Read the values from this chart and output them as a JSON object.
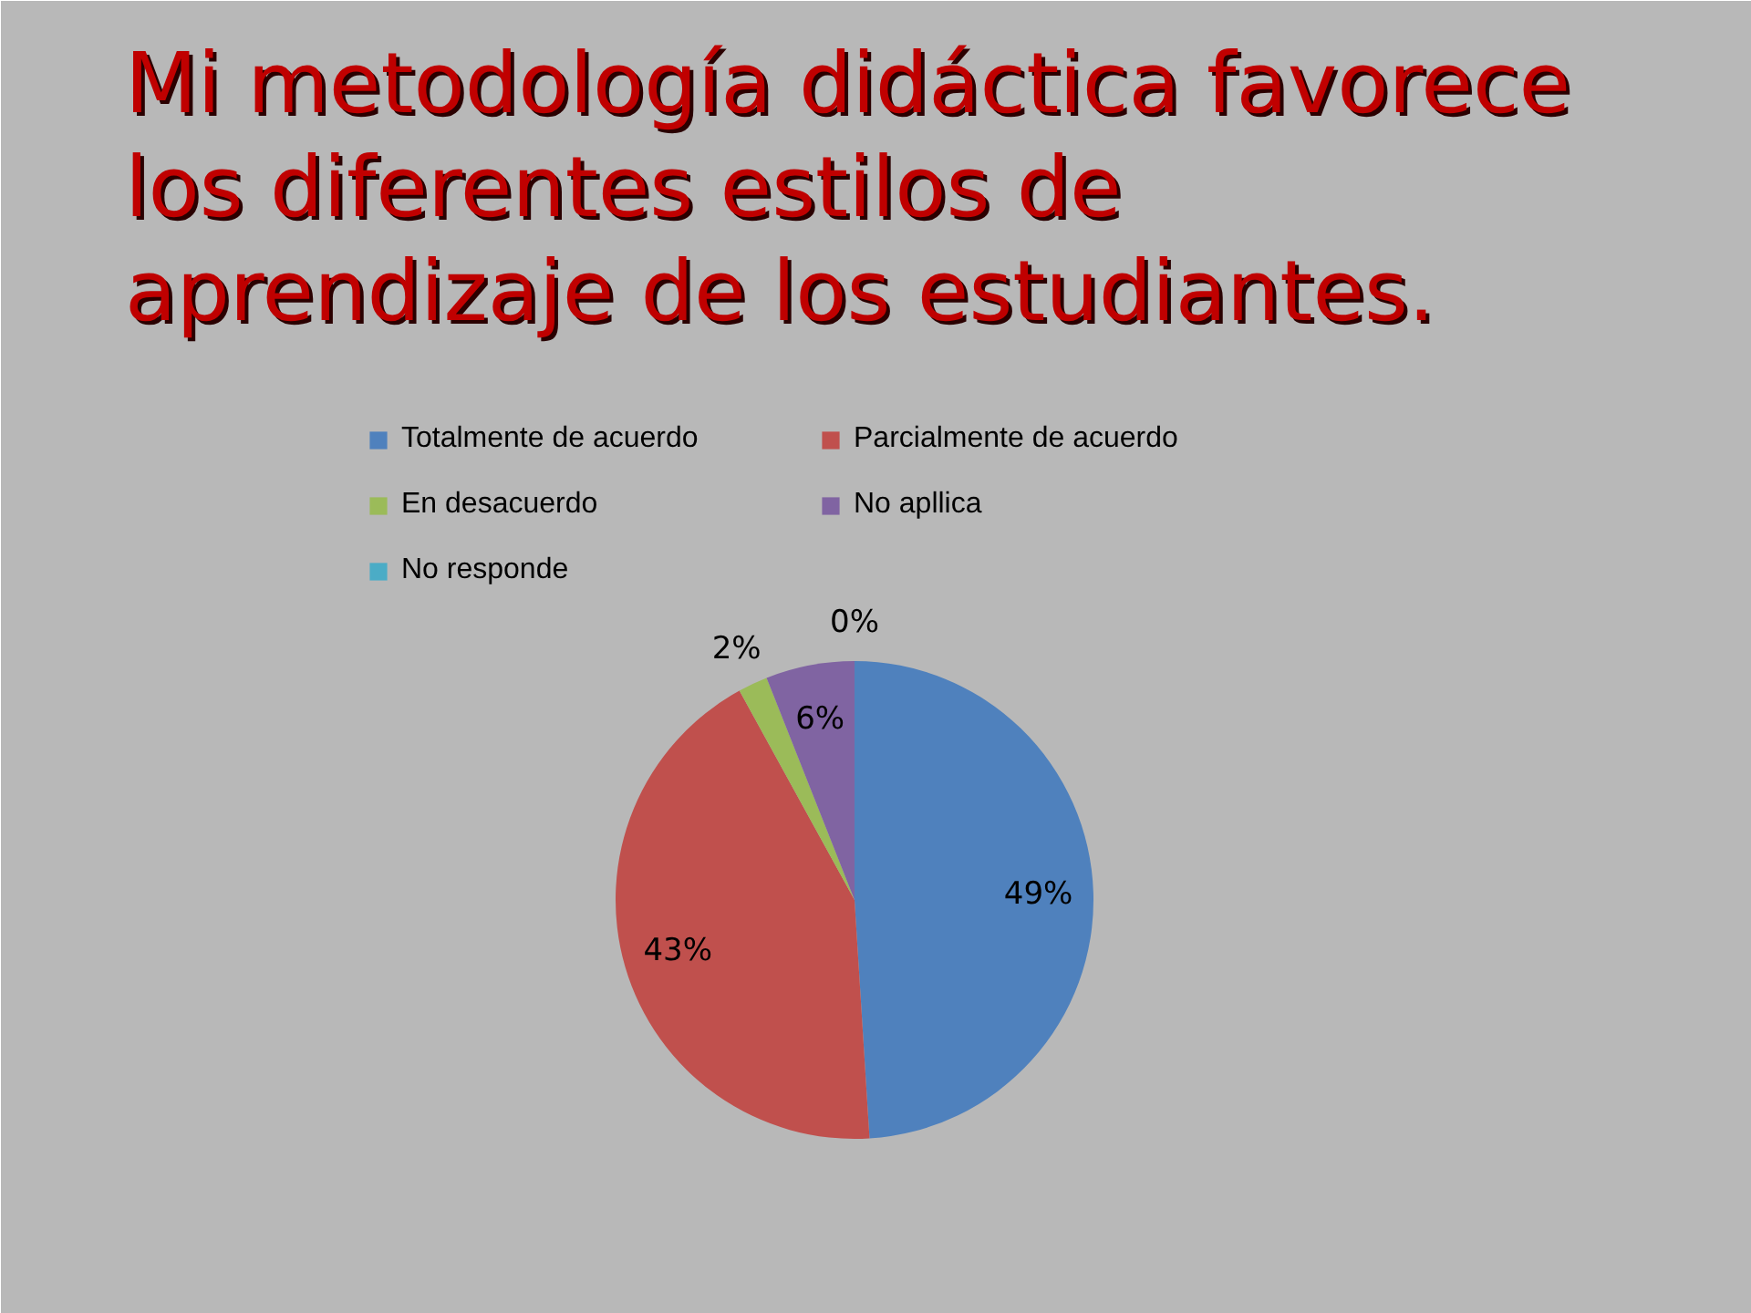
{
  "chart_data": {
    "type": "pie",
    "title": "Mi metodología didáctica favorece los diferentes estilos de aprendizaje de los estudiantes.",
    "categories": [
      "Totalmente de acuerdo",
      "Parcialmente de acuerdo",
      "En desacuerdo",
      "No apllica",
      "No responde"
    ],
    "values": [
      49,
      43,
      2,
      6,
      0
    ],
    "colors": [
      "#4f81bd",
      "#c0504d",
      "#9bbb59",
      "#8064a2",
      "#4bacc6"
    ],
    "value_labels": [
      "49%",
      "43%",
      "2%",
      "6%",
      "0%"
    ],
    "legend": "top"
  }
}
